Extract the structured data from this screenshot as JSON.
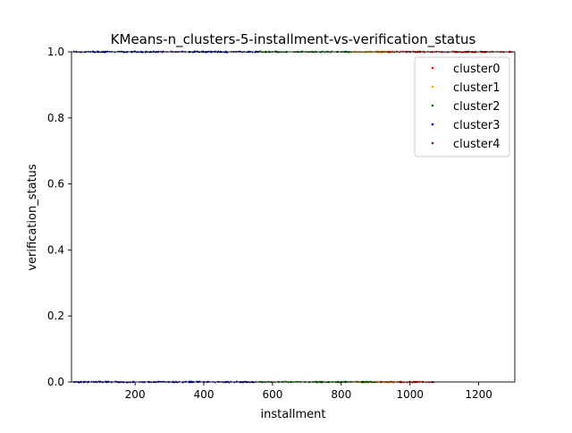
{
  "chart_data": {
    "type": "scatter",
    "title": "KMeans-n_clusters-5-installment-vs-verification_status",
    "xlabel": "installment",
    "ylabel": "verification_status",
    "xlim": [
      15,
      1305
    ],
    "ylim": [
      0.0,
      1.0
    ],
    "xticks": [
      200,
      400,
      600,
      800,
      1000,
      1200
    ],
    "yticks": [
      0.0,
      0.2,
      0.4,
      0.6,
      0.8,
      1.0
    ],
    "xtick_labels": [
      "200",
      "400",
      "600",
      "800",
      "1000",
      "1200"
    ],
    "ytick_labels": [
      "0.0",
      "0.2",
      "0.4",
      "0.6",
      "0.8",
      "1.0"
    ],
    "legend_position": "top-right",
    "grid": false,
    "series": [
      {
        "name": "cluster0",
        "color": "#ff0000",
        "ranges": [
          {
            "y": 0,
            "x": [
              900,
              1070
            ]
          },
          {
            "y": 1,
            "x": [
              900,
              1300
            ]
          }
        ]
      },
      {
        "name": "cluster1",
        "color": "#ffa500",
        "ranges": [
          {
            "y": 0,
            "x": [
              830,
              960
            ]
          },
          {
            "y": 1,
            "x": [
              830,
              960
            ]
          }
        ]
      },
      {
        "name": "cluster2",
        "color": "#008000",
        "ranges": [
          {
            "y": 0,
            "x": [
              560,
              900
            ]
          },
          {
            "y": 1,
            "x": [
              560,
              830
            ]
          }
        ]
      },
      {
        "name": "cluster3",
        "color": "#0000cc",
        "ranges": [
          {
            "y": 0,
            "x": [
              20,
              560
            ]
          },
          {
            "y": 1,
            "x": [
              20,
              560
            ]
          }
        ]
      },
      {
        "name": "cluster4",
        "color": "#800080",
        "ranges": [
          {
            "y": 0,
            "x": [
              1060,
              1070
            ]
          },
          {
            "y": 1,
            "x": [
              20,
              30
            ]
          }
        ]
      }
    ]
  }
}
